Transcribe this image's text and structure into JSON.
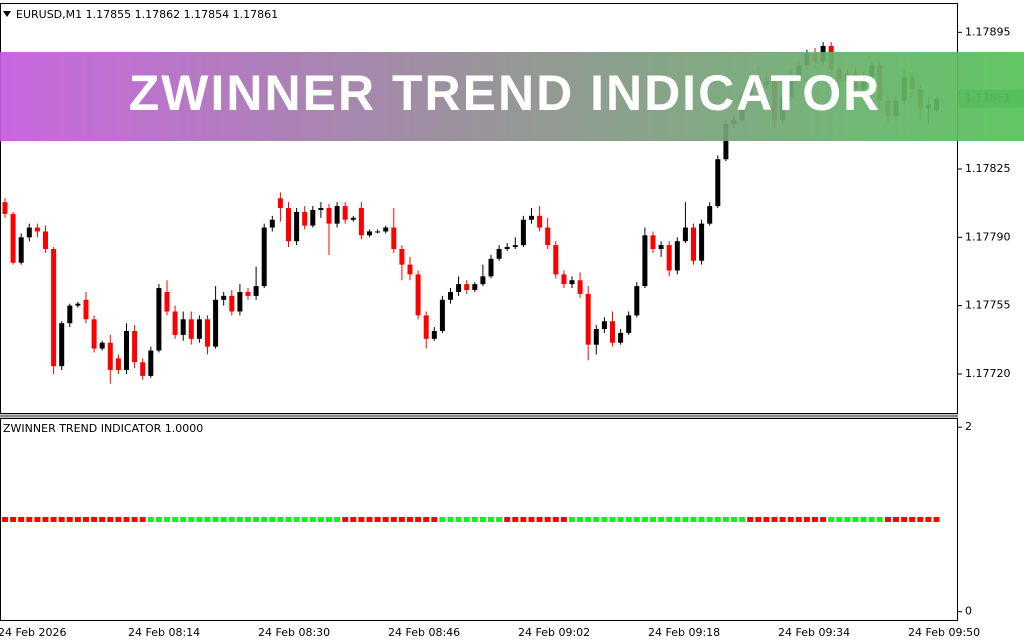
{
  "banner": "ZWINNER TREND INDICATOR",
  "chart_data": [
    {
      "type": "candlestick",
      "title": "EURUSD,M1  1.17855 1.17862 1.17854 1.17861",
      "up_color": "#000000",
      "down_color": "#ff0000",
      "ylim": [
        1.177,
        1.17909
      ],
      "yticks": [
        {
          "value": 1.17895,
          "label": "1.17895"
        },
        {
          "value": 1.17825,
          "label": "1.17825"
        },
        {
          "value": 1.1779,
          "label": "1.17790"
        },
        {
          "value": 1.17755,
          "label": "1.17755"
        },
        {
          "value": 1.1772,
          "label": "1.17720"
        }
      ],
      "x_labels": [
        "24 Feb 2026",
        "24 Feb 08:14",
        "24 Feb 08:30",
        "24 Feb 08:46",
        "24 Feb 09:02",
        "24 Feb 09:18",
        "24 Feb 09:34",
        "24 Feb 09:50"
      ],
      "open": [
        1.17808,
        1.17802,
        1.17777,
        1.1779,
        1.17795,
        1.17793,
        1.17784,
        1.17724,
        1.17746,
        1.17755,
        1.17758,
        1.17748,
        1.17733,
        1.17736,
        1.17728,
        1.17722,
        1.17742,
        1.17726,
        1.17719,
        1.17732,
        1.17762,
        1.17752,
        1.1774,
        1.17748,
        1.17738,
        1.17748,
        1.17734,
        1.17758,
        1.1776,
        1.17752,
        1.17762,
        1.1776,
        1.17765,
        1.17795,
        1.1781,
        1.17805,
        1.17788,
        1.17803,
        1.17796,
        1.17804,
        1.17805,
        1.17797,
        1.17806,
        1.17799,
        1.17805,
        1.17791,
        1.17793,
        1.17793,
        1.17795,
        1.17784,
        1.17776,
        1.17771,
        1.1775,
        1.17738,
        1.17742,
        1.17758,
        1.17762,
        1.17766,
        1.17763,
        1.17766,
        1.1777,
        1.17779,
        1.17784,
        1.17785,
        1.17786,
        1.17799,
        1.17801,
        1.17795,
        1.17786,
        1.17771,
        1.17766,
        1.17768,
        1.17761,
        1.17735,
        1.17743,
        1.17747,
        1.17736,
        1.17741,
        1.1775,
        1.17765,
        1.17791,
        1.17784,
        1.17786,
        1.17773,
        1.17788,
        1.17795,
        1.17778,
        1.17797,
        1.17806,
        1.1783,
        1.17848,
        1.1785,
        1.17862,
        1.17872,
        1.17868,
        1.1787,
        1.1785,
        1.17862,
        1.17872,
        1.17878,
        1.17884,
        1.1788,
        1.17888,
        1.17876,
        1.1787,
        1.17874,
        1.17866,
        1.17872,
        1.17878,
        1.1786,
        1.17852,
        1.1786,
        1.17872,
        1.17866,
        1.17856,
        1.17855
      ],
      "high": [
        1.1781,
        1.17803,
        1.17792,
        1.17797,
        1.17797,
        1.17796,
        1.17785,
        1.17747,
        1.17756,
        1.17757,
        1.17762,
        1.1775,
        1.17737,
        1.1774,
        1.1773,
        1.17746,
        1.17745,
        1.17728,
        1.17734,
        1.17766,
        1.17768,
        1.17755,
        1.17752,
        1.17752,
        1.1775,
        1.1775,
        1.17765,
        1.17762,
        1.17763,
        1.17766,
        1.17764,
        1.17775,
        1.17797,
        1.17801,
        1.17813,
        1.17808,
        1.17805,
        1.17806,
        1.17806,
        1.17808,
        1.17807,
        1.17808,
        1.17808,
        1.17801,
        1.17808,
        1.17794,
        1.17794,
        1.17796,
        1.17805,
        1.17786,
        1.1778,
        1.17773,
        1.17752,
        1.17744,
        1.1776,
        1.17764,
        1.1777,
        1.17768,
        1.17767,
        1.17776,
        1.17781,
        1.17786,
        1.17787,
        1.1779,
        1.17801,
        1.17805,
        1.17806,
        1.178,
        1.17788,
        1.17773,
        1.1777,
        1.17772,
        1.17765,
        1.17745,
        1.17749,
        1.17752,
        1.17743,
        1.17752,
        1.17767,
        1.17795,
        1.17793,
        1.17788,
        1.17788,
        1.1779,
        1.17808,
        1.17797,
        1.17799,
        1.17808,
        1.17832,
        1.1785,
        1.17852,
        1.17864,
        1.17874,
        1.17878,
        1.17872,
        1.17873,
        1.17864,
        1.17876,
        1.1788,
        1.17886,
        1.17887,
        1.1789,
        1.1789,
        1.17878,
        1.17876,
        1.17877,
        1.17875,
        1.1788,
        1.1788,
        1.17863,
        1.17862,
        1.17876,
        1.17874,
        1.17868,
        1.17862,
        1.17862
      ],
      "low": [
        1.178,
        1.17776,
        1.17776,
        1.17788,
        1.1779,
        1.17782,
        1.1772,
        1.17722,
        1.17744,
        1.17754,
        1.17746,
        1.17731,
        1.17732,
        1.17715,
        1.1772,
        1.1772,
        1.17723,
        1.17717,
        1.17718,
        1.17731,
        1.1775,
        1.17738,
        1.17737,
        1.17735,
        1.17736,
        1.1773,
        1.17733,
        1.17755,
        1.1775,
        1.1775,
        1.17758,
        1.17758,
        1.17764,
        1.17793,
        1.17798,
        1.17785,
        1.17786,
        1.17794,
        1.17795,
        1.178,
        1.17781,
        1.17795,
        1.17797,
        1.17798,
        1.17789,
        1.1779,
        1.17792,
        1.17792,
        1.17782,
        1.17768,
        1.17768,
        1.17748,
        1.17733,
        1.17737,
        1.17741,
        1.17756,
        1.1776,
        1.17761,
        1.17762,
        1.17765,
        1.17769,
        1.17778,
        1.17783,
        1.17784,
        1.17785,
        1.17797,
        1.17793,
        1.17784,
        1.17769,
        1.17764,
        1.17764,
        1.17759,
        1.17727,
        1.1773,
        1.17741,
        1.17734,
        1.17735,
        1.1774,
        1.17749,
        1.17764,
        1.17782,
        1.1778,
        1.1777,
        1.17771,
        1.17787,
        1.17776,
        1.17776,
        1.17796,
        1.17805,
        1.17829,
        1.17846,
        1.17849,
        1.1786,
        1.17865,
        1.17866,
        1.17846,
        1.17848,
        1.1786,
        1.1787,
        1.17876,
        1.17877,
        1.17878,
        1.17874,
        1.17866,
        1.17868,
        1.17864,
        1.17864,
        1.1787,
        1.17856,
        1.17848,
        1.1785,
        1.17858,
        1.17862,
        1.1785,
        1.17848,
        1.17854
      ],
      "close": [
        1.17802,
        1.17777,
        1.1779,
        1.17795,
        1.17793,
        1.17784,
        1.17724,
        1.17746,
        1.17755,
        1.17756,
        1.17748,
        1.17733,
        1.17736,
        1.17722,
        1.17722,
        1.17742,
        1.17726,
        1.17719,
        1.17732,
        1.17764,
        1.17752,
        1.1774,
        1.17748,
        1.17738,
        1.17748,
        1.17734,
        1.17758,
        1.1776,
        1.17752,
        1.17762,
        1.1776,
        1.17765,
        1.17795,
        1.17799,
        1.17805,
        1.17788,
        1.17803,
        1.17796,
        1.17804,
        1.17805,
        1.17797,
        1.17806,
        1.17799,
        1.178,
        1.17791,
        1.17793,
        1.17793,
        1.17795,
        1.17784,
        1.17776,
        1.17771,
        1.1775,
        1.17738,
        1.17742,
        1.17758,
        1.17762,
        1.17766,
        1.17763,
        1.17766,
        1.1777,
        1.17779,
        1.17784,
        1.17785,
        1.17786,
        1.17799,
        1.17801,
        1.17795,
        1.17786,
        1.17771,
        1.17766,
        1.17768,
        1.17761,
        1.17735,
        1.17743,
        1.17747,
        1.17736,
        1.17741,
        1.1775,
        1.17765,
        1.17791,
        1.17784,
        1.17786,
        1.17773,
        1.17788,
        1.17795,
        1.17778,
        1.17797,
        1.17806,
        1.1783,
        1.17848,
        1.1785,
        1.17862,
        1.17872,
        1.17868,
        1.1787,
        1.1785,
        1.17862,
        1.17872,
        1.17878,
        1.17884,
        1.1788,
        1.17888,
        1.17876,
        1.1787,
        1.17874,
        1.17866,
        1.17872,
        1.17878,
        1.1786,
        1.17852,
        1.1786,
        1.17872,
        1.17866,
        1.17856,
        1.17858,
        1.17861
      ]
    },
    {
      "type": "dots",
      "title": "ZWINNER TREND INDICATOR 1.0000",
      "ylim": [
        -0.09,
        2.1
      ],
      "yticks": [
        2,
        0
      ],
      "values": [
        1,
        1,
        1,
        1,
        1,
        1,
        1,
        1,
        1,
        1,
        1,
        1,
        1,
        1,
        1,
        1,
        1,
        1,
        1,
        1,
        1,
        1,
        1,
        1,
        1,
        1,
        1,
        1,
        1,
        1,
        1,
        1,
        1,
        1,
        1,
        1,
        1,
        1,
        1,
        1,
        1,
        1,
        1,
        1,
        1,
        1,
        1,
        1,
        1,
        1,
        1,
        1,
        1,
        1,
        1,
        1,
        1,
        1,
        1,
        1,
        1,
        1,
        1,
        1,
        1,
        1,
        1,
        1,
        1,
        1,
        1,
        1,
        1,
        1,
        1,
        1,
        1,
        1,
        1,
        1,
        1,
        1,
        1,
        1,
        1,
        1,
        1,
        1,
        1,
        1,
        1,
        1,
        1,
        1,
        1,
        1,
        1,
        1,
        1,
        1,
        1,
        1,
        1,
        1,
        1,
        1,
        1,
        1,
        1,
        1,
        1,
        1,
        1,
        1,
        1,
        1
      ],
      "colors": [
        "red",
        "red",
        "red",
        "red",
        "red",
        "red",
        "red",
        "red",
        "red",
        "red",
        "red",
        "red",
        "red",
        "red",
        "red",
        "red",
        "red",
        "red",
        "lime",
        "lime",
        "lime",
        "lime",
        "lime",
        "lime",
        "lime",
        "lime",
        "lime",
        "lime",
        "lime",
        "lime",
        "lime",
        "lime",
        "lime",
        "lime",
        "lime",
        "lime",
        "lime",
        "lime",
        "lime",
        "lime",
        "lime",
        "lime",
        "red",
        "red",
        "red",
        "red",
        "red",
        "red",
        "red",
        "red",
        "red",
        "red",
        "red",
        "red",
        "lime",
        "lime",
        "lime",
        "lime",
        "lime",
        "lime",
        "lime",
        "lime",
        "red",
        "red",
        "red",
        "red",
        "red",
        "red",
        "red",
        "red",
        "lime",
        "lime",
        "lime",
        "lime",
        "lime",
        "lime",
        "lime",
        "lime",
        "lime",
        "lime",
        "lime",
        "lime",
        "lime",
        "lime",
        "lime",
        "lime",
        "lime",
        "lime",
        "lime",
        "lime",
        "lime",
        "lime",
        "red",
        "red",
        "red",
        "red",
        "red",
        "red",
        "red",
        "red",
        "red",
        "red",
        "lime",
        "lime",
        "lime",
        "lime",
        "lime",
        "lime",
        "lime",
        "red",
        "red",
        "red",
        "red",
        "red",
        "red",
        "red"
      ]
    }
  ]
}
